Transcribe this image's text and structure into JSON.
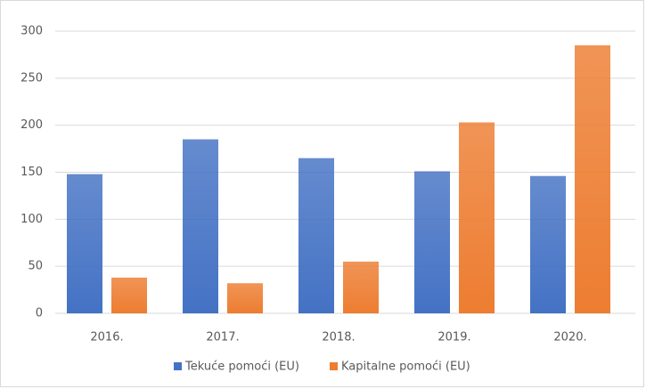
{
  "chart_data": {
    "type": "bar",
    "categories": [
      "2016.",
      "2017.",
      "2018.",
      "2019.",
      "2020."
    ],
    "series": [
      {
        "name": "Tekuće pomoći (EU)",
        "color": "#4472c4",
        "values": [
          148,
          185,
          165,
          151,
          146
        ]
      },
      {
        "name": "Kapitalne pomoći (EU)",
        "color": "#ed7d31",
        "values": [
          38,
          32,
          55,
          203,
          285
        ]
      }
    ],
    "ylim": [
      0,
      300
    ],
    "yticks": [
      0,
      50,
      100,
      150,
      200,
      250,
      300
    ],
    "grid": true,
    "legend": "bottom"
  }
}
